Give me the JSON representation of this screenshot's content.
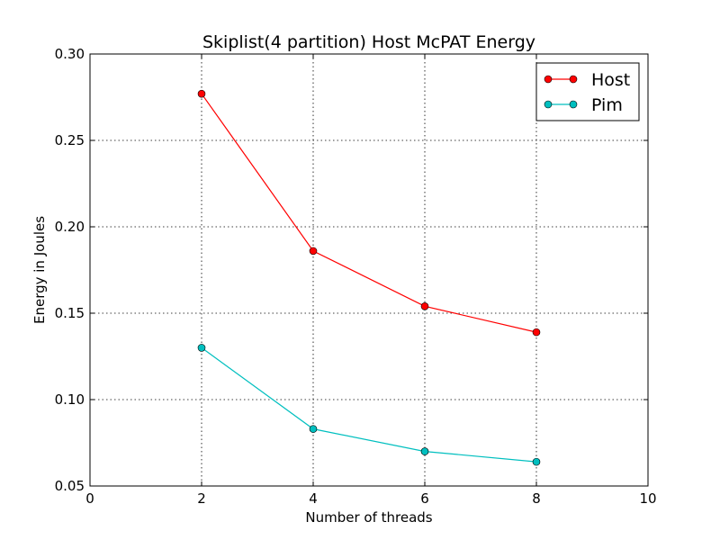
{
  "chart_data": {
    "type": "line",
    "title": "Skiplist(4 partition) Host McPAT Energy",
    "xlabel": "Number of threads",
    "ylabel": "Energy in Joules",
    "xlim": [
      0,
      10
    ],
    "ylim": [
      0.05,
      0.3
    ],
    "xticks": [
      0,
      2,
      4,
      6,
      8,
      10
    ],
    "xtick_labels": [
      "0",
      "2",
      "4",
      "6",
      "8",
      "10"
    ],
    "yticks": [
      0.05,
      0.1,
      0.15,
      0.2,
      0.25,
      0.3
    ],
    "ytick_labels": [
      "0.05",
      "0.10",
      "0.15",
      "0.20",
      "0.25",
      "0.30"
    ],
    "grid": true,
    "legend_position": "top-right",
    "x": [
      2,
      4,
      6,
      8
    ],
    "series": [
      {
        "name": "Host",
        "color": "#ff0000",
        "marker": "circle",
        "values": [
          0.277,
          0.186,
          0.154,
          0.139
        ]
      },
      {
        "name": "Pim",
        "color": "#00bfbf",
        "marker": "circle",
        "values": [
          0.13,
          0.083,
          0.07,
          0.064
        ]
      }
    ]
  }
}
